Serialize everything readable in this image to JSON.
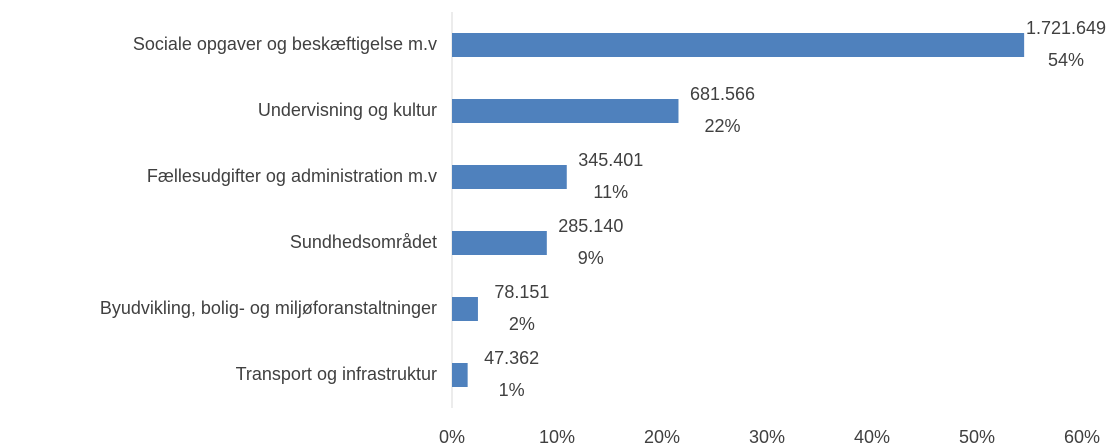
{
  "chart_data": {
    "type": "hbar",
    "categories": [
      "Sociale opgaver og beskæftigelse m.v",
      "Undervisning og kultur",
      "Fællesudgifter og administration m.v",
      "Sundhedsområdet",
      "Byudvikling, bolig- og miljøforanstaltninger",
      "Transport og infrastruktur"
    ],
    "values": [
      54.49,
      21.57,
      10.93,
      9.03,
      2.47,
      1.49
    ],
    "value_labels": [
      "54%",
      "22%",
      "11%",
      "9%",
      "2%",
      "1%"
    ],
    "amount_labels": [
      "1.721.649",
      "681.566",
      "345.401",
      "285.140",
      "78.151",
      "47.362"
    ],
    "color": "#4f81bd",
    "xlim": [
      0,
      60
    ],
    "xticks": [
      {
        "value": 0,
        "label": "0%"
      },
      {
        "value": 10,
        "label": "10%"
      },
      {
        "value": 20,
        "label": "20%"
      },
      {
        "value": 30,
        "label": "30%"
      },
      {
        "value": 40,
        "label": "40%"
      },
      {
        "value": 50,
        "label": "50%"
      },
      {
        "value": 60,
        "label": "60%"
      }
    ]
  }
}
